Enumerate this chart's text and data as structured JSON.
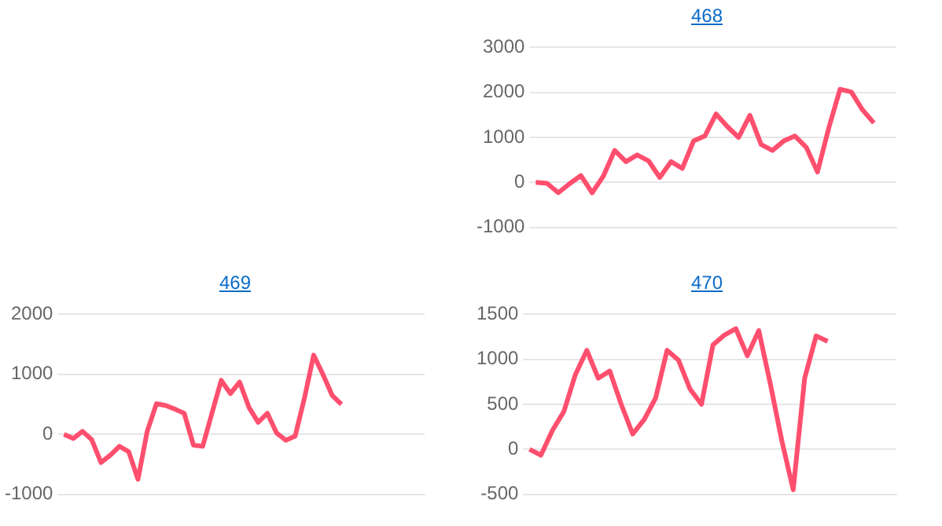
{
  "chart_data": [
    {
      "type": "line",
      "title": "468",
      "categories": [
        null,
        null,
        null,
        null,
        null,
        null,
        null,
        null,
        null,
        null,
        null,
        null,
        null,
        null,
        null,
        null,
        null,
        null,
        null,
        null,
        null,
        null,
        null,
        null,
        null,
        null,
        null,
        null,
        null,
        null,
        null,
        null,
        null
      ],
      "series": [
        {
          "color": "#ff4f6e",
          "values": [
            0,
            -20,
            -230,
            -30,
            150,
            -230,
            140,
            710,
            460,
            610,
            480,
            110,
            460,
            310,
            920,
            1030,
            1520,
            1240,
            1000,
            1490,
            840,
            710,
            920,
            1030,
            780,
            230,
            1210,
            2070,
            2010,
            1610,
            1320,
            null,
            null
          ]
        }
      ],
      "ylim": [
        -1000,
        3000
      ],
      "yticks": [
        -1000,
        0,
        1000,
        2000,
        3000
      ],
      "grid": "y",
      "tick_labels": "y",
      "marker": "none",
      "line_style": "solid"
    },
    {
      "type": "line",
      "title": "469",
      "categories": [
        null,
        null,
        null,
        null,
        null,
        null,
        null,
        null,
        null,
        null,
        null,
        null,
        null,
        null,
        null,
        null,
        null,
        null,
        null,
        null,
        null,
        null,
        null,
        null,
        null,
        null,
        null,
        null,
        null,
        null,
        null,
        null,
        null,
        null,
        null,
        null,
        null,
        null,
        null,
        null
      ],
      "series": [
        {
          "color": "#ff4f6e",
          "values": [
            0,
            -70,
            50,
            -90,
            -470,
            -350,
            -200,
            -290,
            -750,
            50,
            510,
            480,
            420,
            350,
            -180,
            -200,
            350,
            900,
            680,
            870,
            450,
            200,
            350,
            20,
            -100,
            -30,
            600,
            1320,
            1000,
            650,
            500,
            null,
            null,
            null,
            null,
            null,
            null,
            null,
            null,
            null
          ]
        }
      ],
      "ylim": [
        -1000,
        2000
      ],
      "yticks": [
        -1000,
        0,
        1000,
        2000
      ],
      "grid": "y",
      "tick_labels": "y",
      "marker": "none",
      "line_style": "solid"
    },
    {
      "type": "line",
      "title": "470",
      "categories": [
        null,
        null,
        null,
        null,
        null,
        null,
        null,
        null,
        null,
        null,
        null,
        null,
        null,
        null,
        null,
        null,
        null,
        null,
        null,
        null,
        null,
        null,
        null,
        null,
        null,
        null,
        null,
        null,
        null,
        null,
        null,
        null,
        null
      ],
      "series": [
        {
          "color": "#ff4f6e",
          "values": [
            0,
            -65,
            210,
            420,
            830,
            1100,
            790,
            870,
            500,
            170,
            330,
            570,
            1100,
            990,
            670,
            500,
            1160,
            1270,
            1340,
            1040,
            1320,
            730,
            100,
            -450,
            790,
            1260,
            1200,
            null,
            null,
            null,
            null,
            null,
            null
          ]
        }
      ],
      "ylim": [
        -500,
        1500
      ],
      "yticks": [
        -500,
        0,
        500,
        1000,
        1500
      ],
      "grid": "y",
      "tick_labels": "y",
      "marker": "none",
      "line_style": "solid"
    }
  ]
}
